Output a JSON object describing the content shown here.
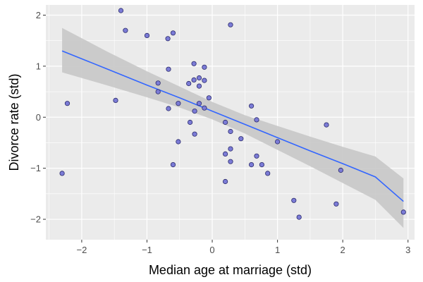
{
  "chart_data": {
    "type": "scatter",
    "title": "",
    "xlabel": "Median age at marriage (std)",
    "ylabel": "Divorce rate (std)",
    "xlim": [
      -2.55,
      3.1
    ],
    "ylim": [
      -2.4,
      2.2
    ],
    "xticks": [
      -2,
      -1,
      0,
      1,
      2,
      3
    ],
    "yticks": [
      -2,
      -1,
      0,
      1,
      2
    ],
    "grid": true,
    "legend": "none",
    "colors": {
      "panel_background": "#ebebeb",
      "grid": "#ffffff",
      "point_fill": "#7b7bd6",
      "point_stroke": "#2b2b6b",
      "fit_line": "#3366ff",
      "ribbon": "#c8c8c8"
    },
    "points": [
      {
        "x": -2.3,
        "y": -1.1
      },
      {
        "x": -2.22,
        "y": 0.27
      },
      {
        "x": -1.48,
        "y": 0.33
      },
      {
        "x": -1.4,
        "y": 2.09
      },
      {
        "x": -1.33,
        "y": 1.7
      },
      {
        "x": -1.0,
        "y": 1.6
      },
      {
        "x": -0.83,
        "y": 0.67
      },
      {
        "x": -0.83,
        "y": 0.5
      },
      {
        "x": -0.68,
        "y": 1.54
      },
      {
        "x": -0.67,
        "y": 0.94
      },
      {
        "x": -0.67,
        "y": 0.17
      },
      {
        "x": -0.6,
        "y": 1.65
      },
      {
        "x": -0.6,
        "y": -0.93
      },
      {
        "x": -0.52,
        "y": 0.27
      },
      {
        "x": -0.52,
        "y": -0.48
      },
      {
        "x": -0.36,
        "y": 0.66
      },
      {
        "x": -0.34,
        "y": -0.1
      },
      {
        "x": -0.28,
        "y": 1.05
      },
      {
        "x": -0.28,
        "y": 0.73
      },
      {
        "x": -0.27,
        "y": 0.12
      },
      {
        "x": -0.27,
        "y": -0.33
      },
      {
        "x": -0.2,
        "y": 0.77
      },
      {
        "x": -0.2,
        "y": 0.61
      },
      {
        "x": -0.2,
        "y": 0.27
      },
      {
        "x": -0.12,
        "y": 0.98
      },
      {
        "x": -0.12,
        "y": 0.72
      },
      {
        "x": -0.12,
        "y": 0.18
      },
      {
        "x": -0.05,
        "y": 0.38
      },
      {
        "x": 0.2,
        "y": -0.1
      },
      {
        "x": 0.2,
        "y": -0.72
      },
      {
        "x": 0.2,
        "y": -1.26
      },
      {
        "x": 0.28,
        "y": 1.81
      },
      {
        "x": 0.28,
        "y": -0.28
      },
      {
        "x": 0.28,
        "y": -0.62
      },
      {
        "x": 0.28,
        "y": -0.87
      },
      {
        "x": 0.44,
        "y": -0.42
      },
      {
        "x": 0.6,
        "y": 0.22
      },
      {
        "x": 0.6,
        "y": -0.93
      },
      {
        "x": 0.68,
        "y": -0.05
      },
      {
        "x": 0.68,
        "y": -0.76
      },
      {
        "x": 0.76,
        "y": -0.93
      },
      {
        "x": 0.85,
        "y": -1.1
      },
      {
        "x": 1.0,
        "y": -0.48
      },
      {
        "x": 1.25,
        "y": -1.63
      },
      {
        "x": 1.33,
        "y": -1.96
      },
      {
        "x": 1.75,
        "y": -0.15
      },
      {
        "x": 1.9,
        "y": -1.7
      },
      {
        "x": 1.97,
        "y": -1.04
      },
      {
        "x": 2.93,
        "y": -1.86
      }
    ],
    "fit": {
      "x": [
        -2.3,
        -1.6,
        -1.0,
        -0.5,
        0.0,
        0.5,
        1.0,
        1.5,
        2.0,
        2.5,
        2.93
      ],
      "y": [
        1.3,
        0.94,
        0.63,
        0.38,
        0.12,
        -0.14,
        -0.4,
        -0.66,
        -0.91,
        -1.17,
        -1.65
      ],
      "lower": [
        0.88,
        0.62,
        0.39,
        0.19,
        -0.04,
        -0.32,
        -0.64,
        -0.96,
        -1.29,
        -1.62,
        -2.17
      ],
      "upper": [
        1.75,
        1.28,
        0.9,
        0.6,
        0.3,
        0.04,
        -0.17,
        -0.38,
        -0.58,
        -0.77,
        -1.2
      ]
    }
  }
}
